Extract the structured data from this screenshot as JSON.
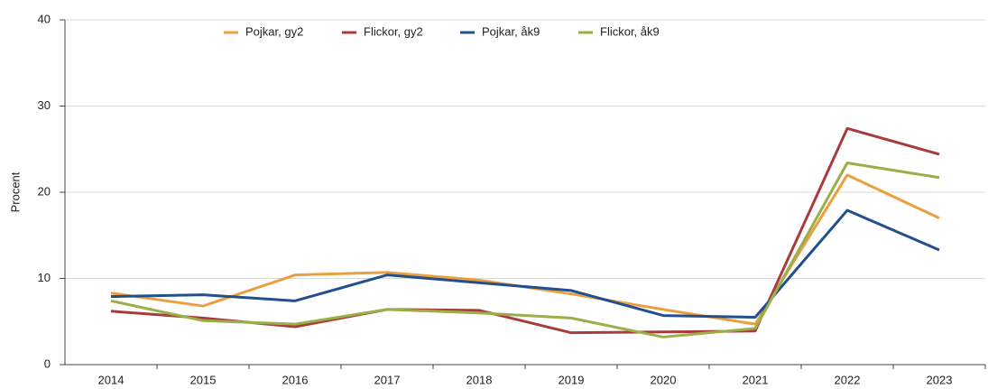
{
  "chart_data": {
    "type": "line",
    "ylabel": "Procent",
    "categories": [
      "2014",
      "2015",
      "2016",
      "2017",
      "2018",
      "2019",
      "2020",
      "2021",
      "2022",
      "2023"
    ],
    "series": [
      {
        "name": "Pojkar, gy2",
        "color": "#eaa040",
        "values": [
          8.3,
          6.8,
          10.4,
          10.7,
          9.8,
          8.2,
          6.4,
          4.7,
          22.0,
          17.0
        ]
      },
      {
        "name": "Flickor, gy2",
        "color": "#a83c3c",
        "values": [
          6.2,
          5.4,
          4.4,
          6.4,
          6.3,
          3.7,
          3.8,
          3.9,
          27.4,
          24.4
        ]
      },
      {
        "name": "Pojkar, åk9",
        "color": "#224f8d",
        "values": [
          7.9,
          8.1,
          7.4,
          10.4,
          9.5,
          8.6,
          5.7,
          5.5,
          17.9,
          13.3
        ]
      },
      {
        "name": "Flickor, åk9",
        "color": "#9cae48",
        "values": [
          7.4,
          5.1,
          4.7,
          6.4,
          6.0,
          5.4,
          3.2,
          4.2,
          23.4,
          21.7
        ]
      }
    ],
    "ylim": [
      0,
      40
    ],
    "yticks": [
      0,
      10,
      20,
      30,
      40
    ],
    "grid": true,
    "legend": "top"
  }
}
